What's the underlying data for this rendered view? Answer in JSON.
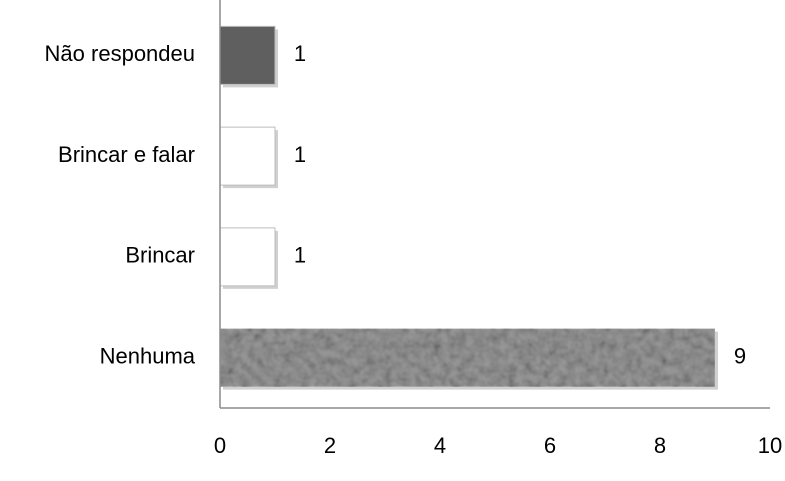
{
  "chart_data": {
    "type": "hbar",
    "categories": [
      "Não respondeu",
      "Brincar e falar",
      "Brincar",
      "Nenhuma"
    ],
    "values": [
      1,
      1,
      1,
      9
    ],
    "colors": [
      "#5f5f5f",
      "#ffffff",
      "#ffffff",
      "#9c9c9c"
    ],
    "xlim": [
      0,
      10
    ],
    "xticks": [
      0,
      2,
      4,
      6,
      8,
      10
    ],
    "grid": false
  }
}
